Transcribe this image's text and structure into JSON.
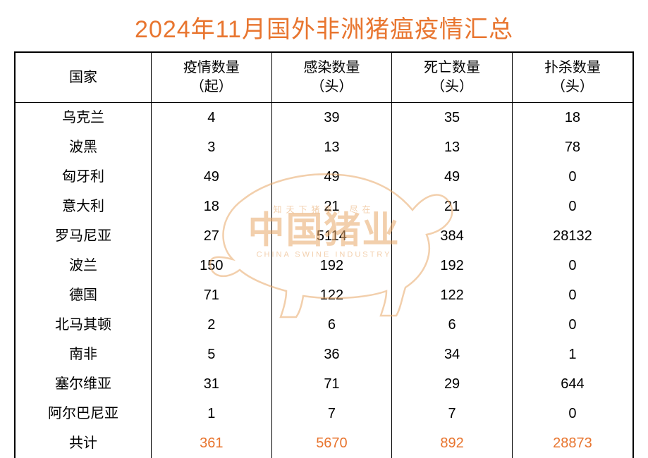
{
  "title": "2024年11月国外非洲猪瘟疫情汇总",
  "title_color": "#e8752f",
  "table": {
    "columns": [
      {
        "label": "国家",
        "width": "22%"
      },
      {
        "label": "疫情数量\n（起）",
        "width": "19.5%"
      },
      {
        "label": "感染数量\n（头）",
        "width": "19.5%"
      },
      {
        "label": "死亡数量\n（头）",
        "width": "19.5%"
      },
      {
        "label": "扑杀数量\n（头）",
        "width": "19.5%"
      }
    ],
    "rows": [
      {
        "country": "乌克兰",
        "outbreaks": 4,
        "infected": 39,
        "deaths": 35,
        "culled": 18
      },
      {
        "country": "波黑",
        "outbreaks": 3,
        "infected": 13,
        "deaths": 13,
        "culled": 78
      },
      {
        "country": "匈牙利",
        "outbreaks": 49,
        "infected": 49,
        "deaths": 49,
        "culled": 0
      },
      {
        "country": "意大利",
        "outbreaks": 18,
        "infected": 21,
        "deaths": 21,
        "culled": 0
      },
      {
        "country": "罗马尼亚",
        "outbreaks": 27,
        "infected": 5114,
        "deaths": 384,
        "culled": 28132
      },
      {
        "country": "波兰",
        "outbreaks": 150,
        "infected": 192,
        "deaths": 192,
        "culled": 0
      },
      {
        "country": "德国",
        "outbreaks": 71,
        "infected": 122,
        "deaths": 122,
        "culled": 0
      },
      {
        "country": "北马其顿",
        "outbreaks": 2,
        "infected": 6,
        "deaths": 6,
        "culled": 0
      },
      {
        "country": "南非",
        "outbreaks": 5,
        "infected": 36,
        "deaths": 34,
        "culled": 1
      },
      {
        "country": "塞尔维亚",
        "outbreaks": 31,
        "infected": 71,
        "deaths": 29,
        "culled": 644
      },
      {
        "country": "阿尔巴尼亚",
        "outbreaks": 1,
        "infected": 7,
        "deaths": 7,
        "culled": 0
      }
    ],
    "total": {
      "label": "共计",
      "outbreaks": 361,
      "infected": 5670,
      "deaths": 892,
      "culled": 28873,
      "color": "#e8752f"
    },
    "header_text_color": "#000000",
    "body_text_color": "#000000",
    "border_color": "#000000",
    "background_color": "#ffffff",
    "font_size_pt": 15
  },
  "watermark": {
    "small_text": "知天下猪事，尽在",
    "big_text": "中国猪业",
    "en_text": "CHINA SWINE INDUSTRY",
    "color": "#e9a869",
    "opacity": 0.55,
    "pig_stroke_color": "#e9a869"
  }
}
